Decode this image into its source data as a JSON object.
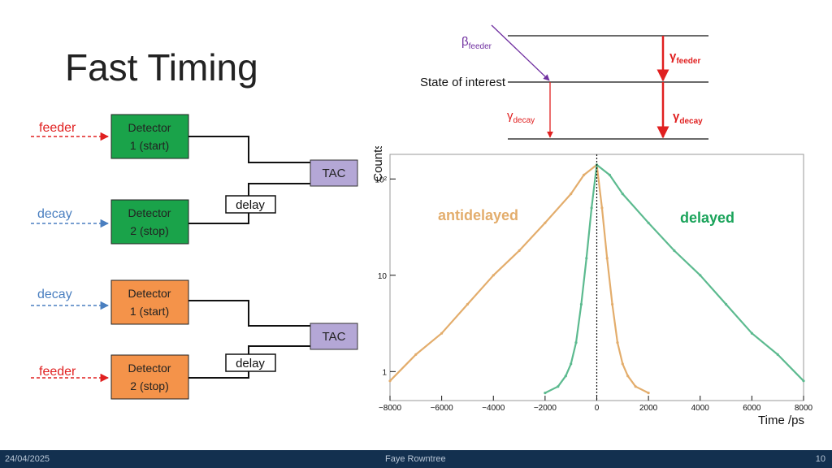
{
  "slide": {
    "title": "Fast Timing",
    "footer_date": "24/04/2025",
    "footer_author": "Faye Rowntree",
    "footer_page": "10"
  },
  "diagram": {
    "top": {
      "input1": "feeder",
      "input2": "decay",
      "det1": [
        "Detector",
        "1 (start)"
      ],
      "det2": [
        "Detector",
        "2 (stop)"
      ],
      "tac": "TAC",
      "delay": "delay",
      "color": "#1aa34a"
    },
    "bottom": {
      "input1": "decay",
      "input2": "feeder",
      "det1": [
        "Detector",
        "1 (start)"
      ],
      "det2": [
        "Detector",
        "2 (stop)"
      ],
      "tac": "TAC",
      "delay": "delay",
      "color": "#f4934a"
    },
    "colors": {
      "feeder": "#e02020",
      "decay": "#4a7fc0",
      "tac": "#b4a7d6"
    }
  },
  "level_scheme": {
    "beta": "β",
    "beta_sub": "feeder",
    "state_label": "State of interest",
    "gamma_feeder": "γ",
    "gamma_feeder_sub": "feeder",
    "gamma_decay_left": "γ",
    "gamma_decay_left_sub": "decay",
    "gamma_decay_right": "γ",
    "gamma_decay_right_sub": "decay"
  },
  "chart_data": {
    "type": "line",
    "xlabel": "Time /ps",
    "ylabel": "Counts",
    "xlim": [
      -8000,
      8000
    ],
    "ylim": [
      0.5,
      180
    ],
    "y_scale": "log",
    "x_ticks": [
      -8000,
      -6000,
      -4000,
      -2000,
      0,
      2000,
      4000,
      6000,
      8000
    ],
    "y_ticks": [
      {
        "value": 1,
        "label": "1"
      },
      {
        "value": 10,
        "label": "10"
      },
      {
        "value": 100,
        "label": "10²"
      }
    ],
    "series": [
      {
        "name": "antidelayed",
        "color": "#e3ad6c",
        "x": [
          -8000,
          -7000,
          -6000,
          -5000,
          -4000,
          -3000,
          -2000,
          -1000,
          -500,
          0,
          200,
          400,
          600,
          800,
          1000,
          1200,
          1500,
          2000
        ],
        "values": [
          0.8,
          1.5,
          2.5,
          5,
          10,
          18,
          35,
          70,
          110,
          140,
          50,
          15,
          5,
          2,
          1.2,
          0.9,
          0.7,
          0.6
        ]
      },
      {
        "name": "delayed",
        "color": "#5cba8f",
        "x": [
          -2000,
          -1500,
          -1200,
          -1000,
          -800,
          -600,
          -400,
          -200,
          0,
          500,
          1000,
          2000,
          3000,
          4000,
          5000,
          6000,
          7000,
          8000
        ],
        "values": [
          0.6,
          0.7,
          0.9,
          1.2,
          2,
          5,
          15,
          50,
          140,
          110,
          70,
          35,
          18,
          10,
          5,
          2.5,
          1.5,
          0.8
        ]
      }
    ],
    "annotations": [
      {
        "text": "antidelayed",
        "color": "#e3ad6c"
      },
      {
        "text": "delayed",
        "color": "#1aa35a"
      }
    ],
    "vline_x": 0
  }
}
